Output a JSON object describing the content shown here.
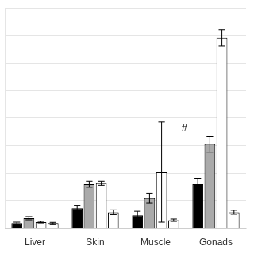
{
  "chart_data": {
    "type": "bar",
    "categories": [
      "Liver",
      "Skin",
      "Muscle",
      "Gonads"
    ],
    "series": [
      {
        "color": "#000000",
        "values": [
          2.5,
          10.0,
          6.5,
          22.0
        ],
        "errors": [
          0.5,
          1.5,
          2.0,
          3.0
        ]
      },
      {
        "color": "#aaaaaa",
        "values": [
          5.0,
          22.0,
          15.0,
          42.0
        ],
        "errors": [
          0.8,
          1.5,
          2.5,
          4.0
        ]
      },
      {
        "color": "#ffffff",
        "values": [
          3.0,
          22.5,
          28.0,
          95.0
        ],
        "errors": [
          0.4,
          1.0,
          25.0,
          4.0
        ]
      },
      {
        "color": "#ffffff",
        "values": [
          2.5,
          8.0,
          4.0,
          8.0
        ],
        "errors": [
          0.4,
          1.2,
          0.6,
          1.0
        ]
      }
    ],
    "annotations": [
      {
        "text": "#",
        "x": "Muscle",
        "y": 50
      }
    ],
    "ylim": [
      0,
      110
    ],
    "yticks": [
      0,
      13.75,
      27.5,
      41.25,
      55,
      68.75,
      82.5,
      96.25,
      110
    ],
    "grid": true,
    "tick_labels": "x"
  }
}
